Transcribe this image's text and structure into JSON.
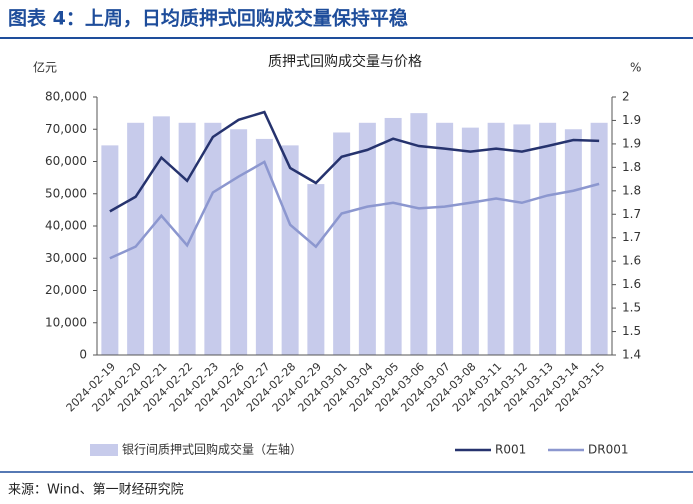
{
  "header": {
    "title": "图表 4：上周，日均质押式回购成交量保持平稳"
  },
  "chart_data": {
    "type": "bar",
    "title": "质押式回购成交量与价格",
    "y_label": "亿元",
    "y2_label": "%",
    "categories": [
      "2024-02-19",
      "2024-02-20",
      "2024-02-21",
      "2024-02-22",
      "2024-02-23",
      "2024-02-26",
      "2024-02-27",
      "2024-02-28",
      "2024-02-29",
      "2024-03-01",
      "2024-03-04",
      "2024-03-05",
      "2024-03-06",
      "2024-03-07",
      "2024-03-08",
      "2024-03-11",
      "2024-03-12",
      "2024-03-13",
      "2024-03-14",
      "2024-03-15"
    ],
    "series": [
      {
        "name": "银行间质押式回购成交量（左轴）",
        "type": "bar",
        "color": "#c7cbeb",
        "values": [
          65000,
          72000,
          74000,
          72000,
          72000,
          70000,
          67000,
          65000,
          53000,
          69000,
          72000,
          73500,
          75000,
          72000,
          70500,
          72000,
          71500,
          72000,
          70000,
          72000
        ]
      },
      {
        "name": "R001",
        "type": "line",
        "axis": "y2",
        "color": "#26336e",
        "values": [
          1.734,
          1.768,
          1.859,
          1.805,
          1.907,
          1.947,
          1.965,
          1.835,
          1.8,
          1.861,
          1.877,
          1.903,
          1.886,
          1.88,
          1.873,
          1.88,
          1.873,
          1.886,
          1.9,
          1.898
        ]
      },
      {
        "name": "DR001",
        "type": "line",
        "axis": "y2",
        "color": "#8c97cf",
        "values": [
          1.625,
          1.652,
          1.724,
          1.655,
          1.778,
          1.815,
          1.849,
          1.703,
          1.652,
          1.729,
          1.745,
          1.754,
          1.741,
          1.745,
          1.754,
          1.764,
          1.754,
          1.771,
          1.782,
          1.798
        ]
      }
    ],
    "ylim": [
      0,
      80000
    ],
    "yticks": [
      0,
      {
        "value": 10000,
        "label": "10,000"
      },
      {
        "value": 20000,
        "label": "20,000"
      },
      {
        "value": 30000,
        "label": "30,000"
      },
      {
        "value": 40000,
        "label": "40,000"
      },
      {
        "value": 50000,
        "label": "50,000"
      },
      {
        "value": 60000,
        "label": "60,000"
      },
      {
        "value": 70000,
        "label": "70,000"
      },
      {
        "value": 80000,
        "label": "80,000"
      }
    ],
    "y2lim": [
      1.4,
      2.0
    ],
    "y2ticks": [
      1.4,
      {
        "value": 1.4545,
        "label": "1.5"
      },
      {
        "value": 1.5091,
        "label": "1.5"
      },
      {
        "value": 1.5636,
        "label": "1.6"
      },
      {
        "value": 1.6182,
        "label": "1.6"
      },
      {
        "value": 1.6727,
        "label": "1.7"
      },
      {
        "value": 1.7273,
        "label": "1.7"
      },
      {
        "value": 1.7818,
        "label": "1.8"
      },
      {
        "value": 1.8364,
        "label": "1.8"
      },
      {
        "value": 1.8909,
        "label": "1.9"
      },
      {
        "value": 1.9455,
        "label": "1.9"
      },
      2.0
    ],
    "grid": false,
    "legend": "bottom"
  },
  "footer": {
    "source": "来源：Wind、第一财经研究院"
  }
}
